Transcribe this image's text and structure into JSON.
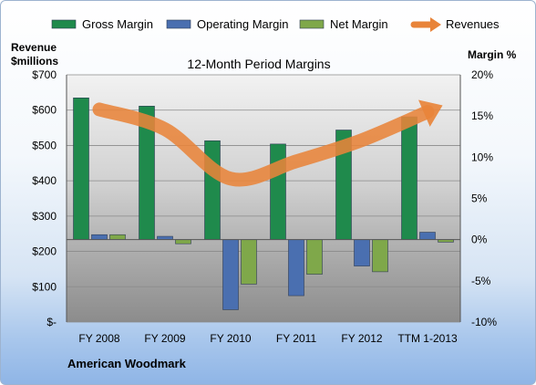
{
  "chart_data": {
    "type": "bar",
    "title": "12-Month Period Margins",
    "company": "American Woodmark",
    "left_axis_title": [
      "Revenue",
      "$millions"
    ],
    "right_axis_title": "Margin %",
    "categories": [
      "FY 2008",
      "FY 2009",
      "FY 2010",
      "FY 2011",
      "FY 2012",
      "TTM 1-2013"
    ],
    "left_axis": {
      "ylim": [
        0,
        700
      ],
      "ticks": [
        "$-",
        "$100",
        "$200",
        "$300",
        "$400",
        "$500",
        "$600",
        "$700"
      ]
    },
    "right_axis": {
      "ylim": [
        -10,
        20
      ],
      "ticks": [
        "-10%",
        "-5%",
        "0%",
        "5%",
        "10%",
        "15%",
        "20%"
      ]
    },
    "series": [
      {
        "name": "Gross Margin",
        "type": "bar",
        "axis": "right",
        "color": "#1f8a4c",
        "values": [
          17.2,
          16.2,
          12.0,
          11.6,
          13.3,
          14.9
        ]
      },
      {
        "name": "Operating Margin",
        "type": "bar",
        "axis": "right",
        "color": "#4a6fb0",
        "values": [
          0.6,
          0.4,
          -8.5,
          -6.8,
          -3.2,
          0.9
        ]
      },
      {
        "name": "Net Margin",
        "type": "bar",
        "axis": "right",
        "color": "#7fa84a",
        "values": [
          0.6,
          -0.5,
          -5.4,
          -4.2,
          -3.9,
          -0.3
        ]
      },
      {
        "name": "Revenues",
        "type": "line",
        "axis": "left",
        "color": "#e8843a",
        "values": [
          602,
          546,
          406,
          455,
          515,
          595
        ]
      }
    ],
    "legend_position": "top",
    "grid": true
  }
}
